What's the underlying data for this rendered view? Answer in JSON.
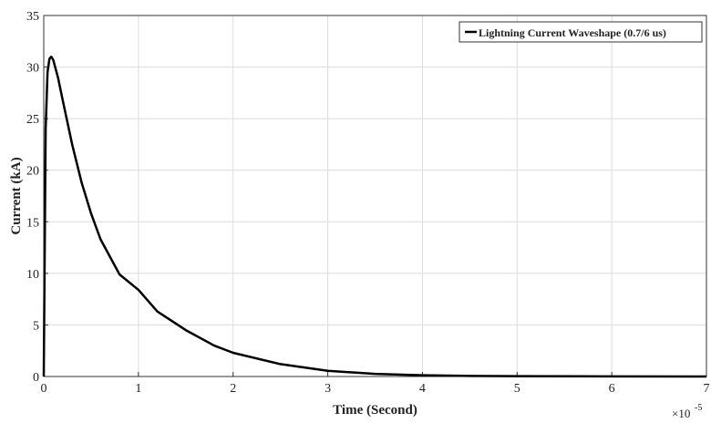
{
  "chart_data": {
    "type": "line",
    "title": "",
    "xlabel": "Time (Second)",
    "ylabel": "Current (kA)",
    "x_exponent_label": "×10",
    "x_exponent_power": "-5",
    "xlim": [
      0,
      7
    ],
    "ylim": [
      0,
      35
    ],
    "x_ticks": [
      0,
      1,
      2,
      3,
      4,
      5,
      6,
      7
    ],
    "y_ticks": [
      0,
      5,
      10,
      15,
      20,
      25,
      30,
      35
    ],
    "x_tick_labels": [
      "0",
      "1",
      "2",
      "3",
      "4",
      "5",
      "6",
      "7"
    ],
    "y_tick_labels": [
      "0",
      "5",
      "10",
      "15",
      "20",
      "25",
      "30",
      "35"
    ],
    "grid": true,
    "legend_position": "top-right",
    "series": [
      {
        "name": "Lightning Current Waveshape (0.7/6 us)",
        "color": "#000000",
        "x": [
          0,
          0.02,
          0.04,
          0.06,
          0.08,
          0.1,
          0.15,
          0.2,
          0.3,
          0.4,
          0.5,
          0.6,
          0.8,
          1.0,
          1.2,
          1.5,
          1.8,
          2.0,
          2.5,
          3.0,
          3.5,
          4.0,
          4.5,
          5.0,
          6.0,
          7.0
        ],
        "y": [
          0,
          24,
          29.5,
          30.8,
          31.0,
          30.7,
          29.0,
          26.8,
          22.5,
          18.8,
          15.8,
          13.3,
          9.9,
          8.4,
          6.3,
          4.5,
          3.0,
          2.3,
          1.2,
          0.55,
          0.25,
          0.12,
          0.06,
          0.03,
          0.01,
          0.0
        ]
      }
    ]
  }
}
